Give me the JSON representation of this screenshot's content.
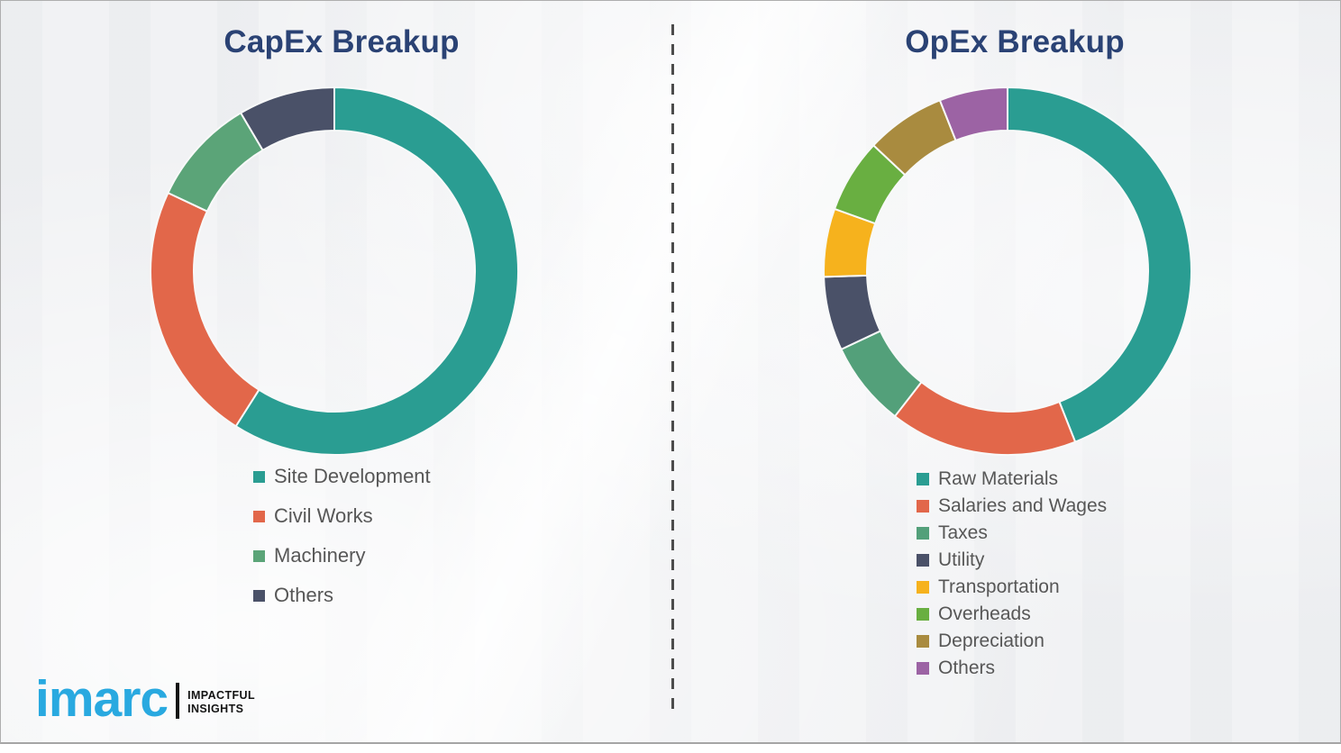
{
  "title_color": "#2a4274",
  "legend_text_color": "#575757",
  "segment_stroke_color": "#f8f9f9",
  "divider": {
    "style": "vertical-dashed",
    "color": "#4c4c4c"
  },
  "chart_data": [
    {
      "type": "pie",
      "subtype": "donut",
      "title": "CapEx Breakup",
      "labels": [
        "Site Development",
        "Civil Works",
        "Machinery",
        "Others"
      ],
      "values": [
        59,
        23,
        9.5,
        8.5
      ],
      "colors": [
        "#2a9d92",
        "#e2674a",
        "#5ba478",
        "#4a5168"
      ],
      "start_angle_deg": 0,
      "direction": "clockwise",
      "legend_position": "below-left",
      "data_labels_shown": false
    },
    {
      "type": "pie",
      "subtype": "donut",
      "title": "OpEx Breakup",
      "labels": [
        "Raw Materials",
        "Salaries and Wages",
        "Taxes",
        "Utility",
        "Transportation",
        "Overheads",
        "Depreciation",
        "Others"
      ],
      "values": [
        44,
        16.5,
        7.5,
        6.5,
        6,
        6.5,
        7,
        6
      ],
      "colors": [
        "#2a9d92",
        "#e2674a",
        "#53a07a",
        "#4a5168",
        "#f6b21d",
        "#69af41",
        "#a98b3f",
        "#9c63a4"
      ],
      "start_angle_deg": 0,
      "direction": "clockwise",
      "legend_position": "below-left",
      "data_labels_shown": false
    }
  ],
  "logo": {
    "brand": "imarc",
    "tagline_line1": "IMPACTFUL",
    "tagline_line2": "INSIGHTS",
    "brand_color": "#29a9e0",
    "tagline_color": "#131313"
  }
}
